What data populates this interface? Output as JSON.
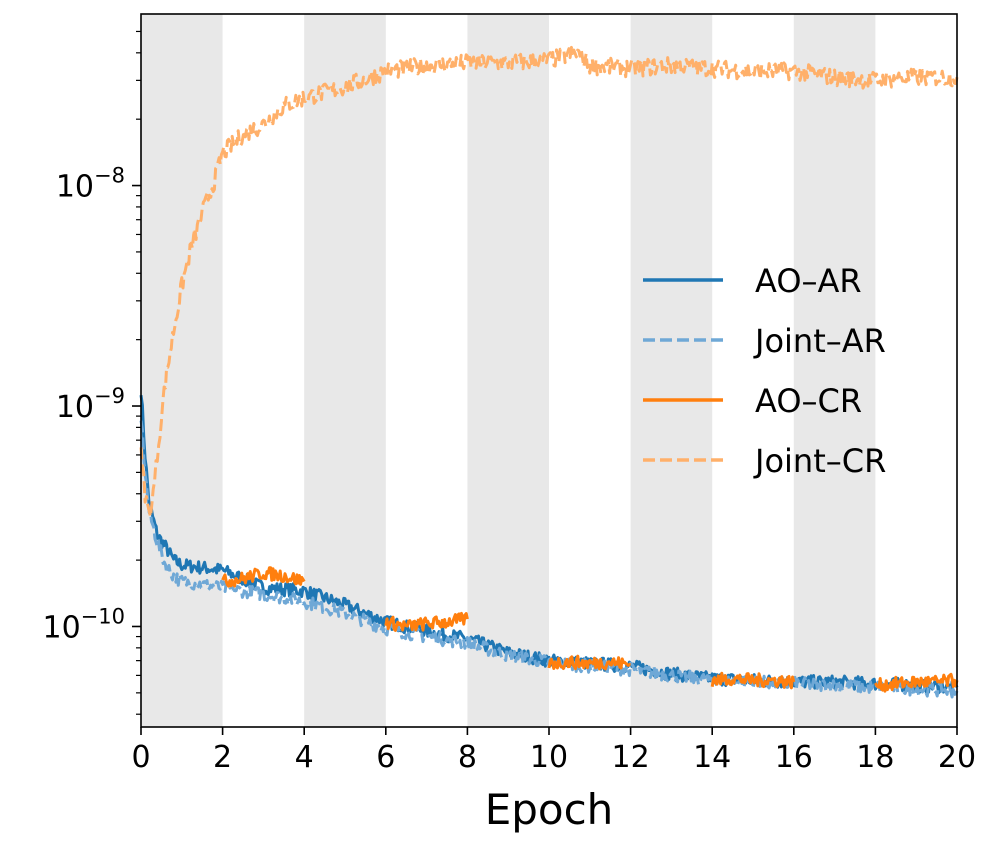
{
  "chart_data": {
    "type": "line",
    "title": "",
    "xlabel": "Epoch",
    "ylabel": "",
    "yscale": "log",
    "xlim": [
      0,
      20
    ],
    "ylim": [
      3.5e-11,
      6e-08
    ],
    "x_ticks": [
      "0",
      "2",
      "4",
      "6",
      "8",
      "10",
      "12",
      "14",
      "16",
      "18",
      "20"
    ],
    "y_ticks": [
      {
        "value": 1e-08,
        "base": "10",
        "exp": "−8"
      },
      {
        "value": 1e-09,
        "base": "10",
        "exp": "−9"
      },
      {
        "value": 1e-10,
        "base": "10",
        "exp": "−10"
      }
    ],
    "shaded_bands": [
      [
        0,
        2
      ],
      [
        4,
        6
      ],
      [
        8,
        10
      ],
      [
        12,
        14
      ],
      [
        16,
        18
      ]
    ],
    "legend_position": "center-right",
    "colors": {
      "ao_ar": "#1f77b4",
      "joint_ar": "#6fa8d6",
      "ao_cr": "#ff7f0e",
      "joint_cr": "#ffb06a",
      "band": "#e8e8e8"
    },
    "series": [
      {
        "name": "AO–AR",
        "key": "ao_ar",
        "style": "solid",
        "x": [
          0,
          0.1,
          0.2,
          0.4,
          0.6,
          0.8,
          1.0,
          1.5,
          2.0,
          3.0,
          4.0,
          5.0,
          6.0,
          7.0,
          8.0,
          9.0,
          10.0,
          11.0,
          12.0,
          13.0,
          14.0,
          15.0,
          16.0,
          17.0,
          18.0,
          19.0,
          20.0
        ],
        "y": [
          1.2e-09,
          6e-10,
          3.6e-10,
          2.6e-10,
          2.3e-10,
          2e-10,
          1.9e-10,
          1.85e-10,
          1.8e-10,
          1.5e-10,
          1.45e-10,
          1.25e-10,
          1.05e-10,
          9.5e-11,
          8.8e-11,
          7.6e-11,
          7e-11,
          6.8e-11,
          6.6e-11,
          6.1e-11,
          5.8e-11,
          5.7e-11,
          5.6e-11,
          5.6e-11,
          5.5e-11,
          5.4e-11,
          5.3e-11
        ]
      },
      {
        "name": "Joint–AR",
        "key": "joint_ar",
        "style": "dashed",
        "x": [
          0,
          0.1,
          0.2,
          0.4,
          0.6,
          0.8,
          1.0,
          1.5,
          2.0,
          3.0,
          4.0,
          5.0,
          6.0,
          7.0,
          8.0,
          9.0,
          10.0,
          11.0,
          12.0,
          13.0,
          14.0,
          15.0,
          16.0,
          17.0,
          18.0,
          19.0,
          20.0
        ],
        "y": [
          9e-10,
          5e-10,
          3.3e-10,
          2.4e-10,
          1.9e-10,
          1.7e-10,
          1.6e-10,
          1.55e-10,
          1.5e-10,
          1.4e-10,
          1.3e-10,
          1.15e-10,
          9.8e-11,
          9e-11,
          8.4e-11,
          7.4e-11,
          6.9e-11,
          6.6e-11,
          6.4e-11,
          6e-11,
          5.7e-11,
          5.6e-11,
          5.5e-11,
          5.4e-11,
          5.3e-11,
          5.2e-11,
          5.1e-11
        ]
      },
      {
        "name": "AO–CR",
        "key": "ao_cr",
        "style": "solid",
        "segments": [
          {
            "x": [
              2.0,
              2.5,
              3.0,
              3.5,
              4.0
            ],
            "y": [
              1.6e-10,
              1.65e-10,
              1.75e-10,
              1.7e-10,
              1.6e-10
            ]
          },
          {
            "x": [
              6.0,
              6.5,
              7.0,
              7.5,
              8.0
            ],
            "y": [
              1.05e-10,
              1e-10,
              1.03e-10,
              1.05e-10,
              1.08e-10
            ]
          },
          {
            "x": [
              10.0,
              10.5,
              11.0,
              11.5,
              12.0
            ],
            "y": [
              6.8e-11,
              6.9e-11,
              6.8e-11,
              6.9e-11,
              6.7e-11
            ]
          },
          {
            "x": [
              14.0,
              14.5,
              15.0,
              15.5,
              16.0
            ],
            "y": [
              5.7e-11,
              5.8e-11,
              5.7e-11,
              5.7e-11,
              5.6e-11
            ]
          },
          {
            "x": [
              18.0,
              18.5,
              19.0,
              19.5,
              20.0
            ],
            "y": [
              5.4e-11,
              5.5e-11,
              5.6e-11,
              5.6e-11,
              5.7e-11
            ]
          }
        ]
      },
      {
        "name": "Joint–CR",
        "key": "joint_cr",
        "style": "dashed",
        "x": [
          0,
          0.1,
          0.2,
          0.3,
          0.4,
          0.5,
          0.6,
          0.8,
          1.0,
          1.2,
          1.5,
          1.8,
          2.0,
          2.5,
          3.0,
          3.5,
          4.0,
          5.0,
          6.0,
          7.0,
          8.0,
          9.0,
          10.0,
          10.7,
          11.0,
          12.0,
          13.0,
          14.0,
          15.0,
          16.0,
          17.0,
          18.0,
          19.0,
          20.0
        ],
        "y": [
          6e-10,
          4e-10,
          3.2e-10,
          4e-10,
          6e-10,
          9e-10,
          1.3e-09,
          2.2e-09,
          3.5e-09,
          5e-09,
          7.5e-09,
          1.05e-08,
          1.4e-08,
          1.7e-08,
          1.9e-08,
          2.3e-08,
          2.5e-08,
          2.8e-08,
          3.3e-08,
          3.5e-08,
          3.6e-08,
          3.6e-08,
          3.7e-08,
          4e-08,
          3.5e-08,
          3.4e-08,
          3.5e-08,
          3.4e-08,
          3.3e-08,
          3.3e-08,
          3.1e-08,
          3e-08,
          3.1e-08,
          3.1e-08
        ]
      }
    ]
  }
}
